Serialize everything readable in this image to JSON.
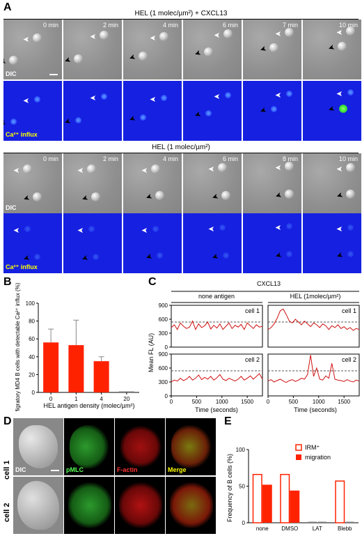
{
  "panel_a": {
    "label": "A",
    "rows": [
      {
        "condition": "HEL (1 molec/µm²) + CXCL13",
        "times": [
          "0 min",
          "2 min",
          "4 min",
          "6 min",
          "7 min",
          "10 min"
        ],
        "dic_label": "DIC",
        "ca_label": "Ca²⁺ influx"
      },
      {
        "condition": "HEL (1 molec/µm²)",
        "times": [
          "0 min",
          "2 min",
          "4 min",
          "6 min",
          "8 min",
          "10 min"
        ],
        "dic_label": "DIC",
        "ca_label": "Ca²⁺ influx"
      }
    ]
  },
  "panel_b": {
    "label": "B",
    "chart_data": {
      "type": "bar",
      "categories": [
        "0",
        "1",
        "4",
        "20"
      ],
      "values": [
        56,
        53,
        35,
        0
      ],
      "errors": [
        15,
        28,
        5,
        0
      ],
      "xlabel": "HEL antigen density (molec/µm²)",
      "ylabel": "Migratory MD4 B cells with detectable Ca²⁺ influx (%)",
      "ylim": [
        0,
        100
      ],
      "yticks": [
        "0",
        "20",
        "40",
        "60",
        "80",
        "100"
      ],
      "color": "#ff2200"
    }
  },
  "panel_c": {
    "label": "C",
    "header": "CXCL13",
    "col_left": "none antigen",
    "col_right": "HEL (1molec/µm²)",
    "ylabel": "Mean FL (AU)",
    "xlabel": "Time (seconds)",
    "yticks": [
      "0",
      "300",
      "600",
      "900"
    ],
    "xticks": [
      "0",
      "500",
      "1000",
      "1500"
    ],
    "cells": [
      "cell 1",
      "cell 1",
      "cell 2",
      "cell 2"
    ],
    "chart_data": {
      "type": "line",
      "ylim": [
        0,
        900
      ],
      "xlim": [
        0,
        1800
      ],
      "threshold": 540,
      "series": [
        {
          "x": [
            0,
            60,
            120,
            180,
            240,
            300,
            360,
            420,
            480,
            540,
            600,
            660,
            720,
            780,
            840,
            900,
            960,
            1020,
            1080,
            1140,
            1200,
            1260,
            1320,
            1380,
            1440,
            1500,
            1560,
            1620,
            1680,
            1740,
            1800
          ],
          "y": [
            420,
            480,
            380,
            520,
            450,
            400,
            430,
            560,
            380,
            500,
            420,
            460,
            540,
            390,
            470,
            410,
            500,
            380,
            450,
            520,
            400,
            470,
            430,
            490,
            380,
            520,
            460,
            400,
            480,
            430,
            450
          ]
        },
        {
          "x": [
            0,
            60,
            120,
            180,
            240,
            300,
            360,
            420,
            480,
            540,
            600,
            660,
            720,
            780,
            840,
            900,
            960,
            1020,
            1080,
            1140,
            1200,
            1260,
            1320,
            1380,
            1440,
            1500,
            1560,
            1620,
            1680,
            1740,
            1800
          ],
          "y": [
            380,
            420,
            500,
            620,
            780,
            820,
            700,
            560,
            520,
            600,
            540,
            480,
            560,
            500,
            440,
            520,
            480,
            420,
            500,
            460,
            380,
            460,
            420,
            480,
            400,
            440,
            380,
            420,
            360,
            400,
            380
          ]
        },
        {
          "x": [
            0,
            60,
            120,
            180,
            240,
            300,
            360,
            420,
            480,
            540,
            600,
            660,
            720,
            780,
            840,
            900,
            960,
            1020,
            1080,
            1140,
            1200,
            1260,
            1320,
            1380,
            1440,
            1500,
            1560,
            1620,
            1680,
            1740,
            1800
          ],
          "y": [
            300,
            340,
            320,
            380,
            330,
            360,
            420,
            340,
            380,
            450,
            350,
            400,
            360,
            420,
            340,
            390,
            460,
            360,
            330,
            380,
            350,
            320,
            360,
            420,
            340,
            380,
            430,
            360,
            420,
            480,
            360
          ]
        },
        {
          "x": [
            0,
            60,
            120,
            180,
            240,
            300,
            360,
            420,
            480,
            540,
            600,
            660,
            720,
            780,
            840,
            900,
            960,
            1020,
            1080,
            1140,
            1200,
            1260,
            1320,
            1380,
            1440,
            1500,
            1560,
            1620,
            1680,
            1740,
            1800
          ],
          "y": [
            320,
            350,
            300,
            330,
            360,
            320,
            290,
            330,
            350,
            310,
            340,
            380,
            360,
            460,
            880,
            420,
            600,
            360,
            340,
            430,
            380,
            700,
            360,
            340,
            330,
            310,
            350,
            320,
            300,
            340,
            320
          ]
        }
      ]
    }
  },
  "panel_d": {
    "label": "D",
    "rows": [
      "cell 1",
      "cell 2"
    ],
    "channels": [
      "DIC",
      "pMLC",
      "F-actin",
      "Merge"
    ]
  },
  "panel_e": {
    "label": "E",
    "chart_data": {
      "type": "bar",
      "categories": [
        "none",
        "DMSO",
        "LAT",
        "Blebb"
      ],
      "series": [
        {
          "name": "IRM⁺",
          "values": [
            66,
            66,
            0,
            57
          ]
        },
        {
          "name": "migration",
          "values": [
            52,
            44,
            0,
            0
          ]
        }
      ],
      "ylabel": "Frequency of B cells (%)",
      "ylim": [
        0,
        100
      ],
      "yticks": [
        "0",
        "50",
        "100"
      ],
      "color": "#ff2200"
    }
  }
}
